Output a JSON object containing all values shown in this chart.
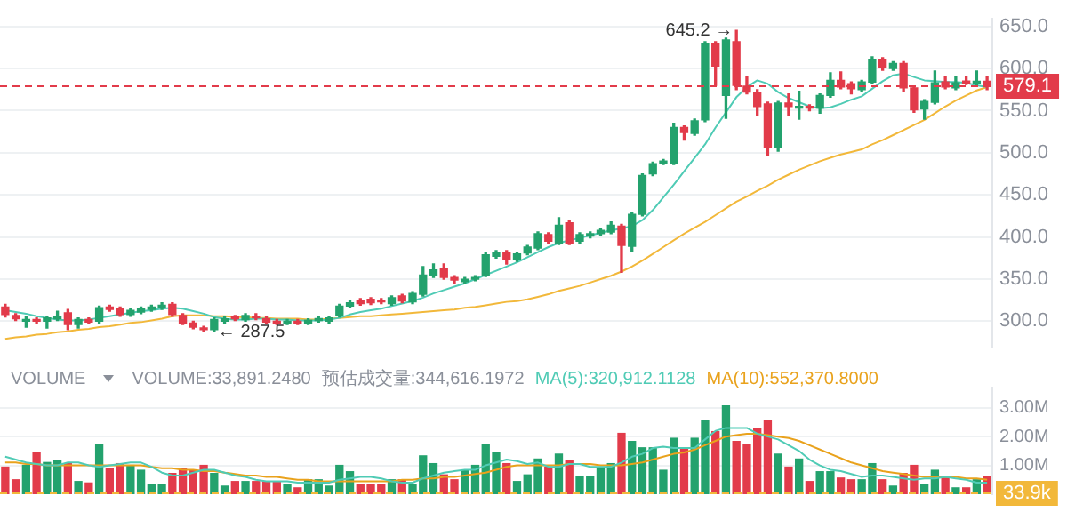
{
  "chart_data": [
    {
      "type": "candlestick",
      "categories": [
        null,
        null,
        null,
        null,
        null,
        null,
        null,
        null,
        null,
        null,
        null,
        null,
        null,
        null,
        null,
        null,
        null,
        null,
        null,
        null,
        null,
        null,
        null,
        null,
        null,
        null,
        null,
        null,
        null,
        null,
        null,
        null,
        null,
        null,
        null,
        null,
        null,
        null,
        null,
        null,
        null,
        null,
        null,
        null,
        null,
        null,
        null,
        null,
        null,
        null,
        null,
        null,
        null,
        null,
        null,
        null,
        null,
        null,
        null,
        null,
        null,
        null,
        null,
        null,
        null,
        null,
        null,
        null,
        null,
        null,
        null,
        null,
        null,
        null,
        null,
        null,
        null,
        null,
        null,
        null,
        null,
        null,
        null,
        null,
        null,
        null,
        null,
        null,
        null,
        null,
        null,
        null,
        null,
        null,
        null
      ],
      "ohlc": [
        [
          317,
          320,
          305,
          308
        ],
        [
          307,
          309,
          301,
          303
        ],
        [
          300,
          305,
          293,
          301
        ],
        [
          302,
          304,
          298,
          300
        ],
        [
          300,
          306,
          292,
          304
        ],
        [
          303,
          312,
          301,
          306
        ],
        [
          310,
          314,
          290,
          296
        ],
        [
          296,
          304,
          292,
          302
        ],
        [
          302,
          304,
          297,
          299
        ],
        [
          300,
          318,
          298,
          316
        ],
        [
          317,
          319,
          312,
          314
        ],
        [
          315,
          317,
          306,
          308
        ],
        [
          308,
          315,
          306,
          313
        ],
        [
          311,
          317,
          309,
          315
        ],
        [
          314,
          319,
          312,
          317
        ],
        [
          316,
          322,
          314,
          319
        ],
        [
          320,
          322,
          306,
          308
        ],
        [
          307,
          309,
          296,
          298
        ],
        [
          298,
          300,
          291,
          293
        ],
        [
          292,
          294,
          288,
          290
        ],
        [
          290,
          304,
          287.5,
          302
        ],
        [
          300,
          305,
          298,
          303
        ],
        [
          305,
          307,
          301,
          303
        ],
        [
          302,
          309,
          300,
          307
        ],
        [
          306,
          309,
          302,
          304
        ],
        [
          303,
          305,
          297,
          299
        ],
        [
          300,
          302,
          296,
          298
        ],
        [
          298,
          302,
          296,
          300
        ],
        [
          300,
          302,
          296,
          298
        ],
        [
          298,
          303,
          296,
          301
        ],
        [
          301,
          305,
          299,
          303
        ],
        [
          300,
          306,
          298,
          304
        ],
        [
          307,
          320,
          305,
          318
        ],
        [
          318,
          325,
          316,
          322
        ],
        [
          324,
          327,
          319,
          321
        ],
        [
          326,
          328,
          320,
          322
        ],
        [
          325,
          327,
          321,
          323
        ],
        [
          321,
          330,
          319,
          328
        ],
        [
          330,
          332,
          322,
          324
        ],
        [
          323,
          335,
          321,
          333
        ],
        [
          332,
          365,
          330,
          355
        ],
        [
          354,
          368,
          352,
          361
        ],
        [
          362,
          368,
          350,
          352
        ],
        [
          352,
          354,
          345,
          349
        ],
        [
          347,
          352,
          345,
          350
        ],
        [
          350,
          354,
          348,
          352
        ],
        [
          355,
          381,
          353,
          379
        ],
        [
          377,
          384,
          375,
          381
        ],
        [
          382,
          384,
          368,
          373
        ],
        [
          373,
          382,
          371,
          380
        ],
        [
          381,
          390,
          379,
          388
        ],
        [
          387,
          406,
          385,
          404
        ],
        [
          403,
          405,
          393,
          395
        ],
        [
          393,
          423,
          391,
          414
        ],
        [
          417,
          420,
          391,
          393
        ],
        [
          395,
          405,
          393,
          403
        ],
        [
          401,
          406,
          399,
          404
        ],
        [
          404,
          410,
          402,
          408
        ],
        [
          406,
          418,
          404,
          414
        ],
        [
          413,
          415,
          358,
          390
        ],
        [
          389,
          429,
          383,
          427
        ],
        [
          427,
          475,
          425,
          473
        ],
        [
          475,
          489,
          473,
          487
        ],
        [
          488,
          492,
          486,
          490
        ],
        [
          488,
          535,
          486,
          530
        ],
        [
          530,
          532,
          515,
          524
        ],
        [
          523,
          540,
          521,
          538
        ],
        [
          539,
          632,
          537,
          630
        ],
        [
          630,
          632,
          580,
          603
        ],
        [
          568,
          636,
          541,
          634
        ],
        [
          632,
          645.2,
          575,
          580
        ],
        [
          579,
          590,
          570,
          572
        ],
        [
          572,
          575,
          545,
          555
        ],
        [
          558,
          560,
          497,
          507
        ],
        [
          506,
          561,
          502,
          559
        ],
        [
          559,
          570,
          545,
          555
        ],
        [
          553,
          573,
          540,
          555
        ],
        [
          555,
          557,
          550,
          553
        ],
        [
          553,
          570,
          547,
          568
        ],
        [
          568,
          595,
          566,
          586
        ],
        [
          586,
          596,
          576,
          578
        ],
        [
          582,
          584,
          570,
          576
        ],
        [
          575,
          586,
          573,
          584
        ],
        [
          584,
          614,
          582,
          611
        ],
        [
          611,
          613,
          598,
          601
        ],
        [
          600,
          608,
          598,
          606
        ],
        [
          606,
          608,
          573,
          577
        ],
        [
          577,
          579,
          548,
          551
        ],
        [
          552,
          563,
          540,
          561
        ],
        [
          560,
          597,
          558,
          583
        ],
        [
          584,
          590,
          576,
          578
        ],
        [
          577,
          590,
          575,
          583
        ],
        [
          584,
          590,
          581,
          583
        ],
        [
          582,
          597,
          580,
          585
        ],
        [
          585,
          590,
          575,
          579.1
        ]
      ],
      "colors": [
        "#e23b4a",
        "#e23b4a",
        "#23a26d",
        "#e23b4a",
        "#23a26d",
        "#23a26d",
        "#e23b4a",
        "#23a26d",
        "#e23b4a",
        "#23a26d",
        "#e23b4a",
        "#e23b4a",
        "#23a26d",
        "#23a26d",
        "#23a26d",
        "#23a26d",
        "#e23b4a",
        "#e23b4a",
        "#e23b4a",
        "#e23b4a",
        "#23a26d",
        "#23a26d",
        "#e23b4a",
        "#23a26d",
        "#e23b4a",
        "#e23b4a",
        "#e23b4a",
        "#23a26d",
        "#e23b4a",
        "#23a26d",
        "#23a26d",
        "#23a26d",
        "#23a26d",
        "#23a26d",
        "#e23b4a",
        "#e23b4a",
        "#e23b4a",
        "#23a26d",
        "#e23b4a",
        "#23a26d",
        "#23a26d",
        "#23a26d",
        "#e23b4a",
        "#e23b4a",
        "#23a26d",
        "#23a26d",
        "#23a26d",
        "#23a26d",
        "#e23b4a",
        "#23a26d",
        "#23a26d",
        "#23a26d",
        "#e23b4a",
        "#23a26d",
        "#e23b4a",
        "#23a26d",
        "#23a26d",
        "#23a26d",
        "#23a26d",
        "#e23b4a",
        "#23a26d",
        "#23a26d",
        "#23a26d",
        "#23a26d",
        "#23a26d",
        "#e23b4a",
        "#23a26d",
        "#23a26d",
        "#e23b4a",
        "#23a26d",
        "#e23b4a",
        "#e23b4a",
        "#e23b4a",
        "#e23b4a",
        "#23a26d",
        "#e23b4a",
        "#23a26d",
        "#e23b4a",
        "#23a26d",
        "#23a26d",
        "#e23b4a",
        "#e23b4a",
        "#23a26d",
        "#23a26d",
        "#e23b4a",
        "#23a26d",
        "#e23b4a",
        "#e23b4a",
        "#23a26d",
        "#23a26d",
        "#e23b4a",
        "#23a26d",
        "#e23b4a",
        "#23a26d",
        "#e23b4a"
      ],
      "series": [
        {
          "type": "line",
          "color": "#4fcbb5",
          "values": [
            313,
            311,
            309,
            306,
            304,
            302,
            301,
            301,
            302,
            304,
            306,
            308,
            310,
            312,
            313,
            315,
            316,
            315,
            312,
            309,
            305,
            303,
            302,
            302,
            303,
            303,
            302,
            302,
            301,
            301,
            301,
            302,
            304,
            308,
            311,
            313,
            315,
            318,
            321,
            324,
            328,
            333,
            337,
            341,
            345,
            350,
            355,
            360,
            365,
            370,
            376,
            382,
            388,
            393,
            396,
            399,
            402,
            405,
            408,
            410,
            413,
            420,
            432,
            447,
            462,
            478,
            494,
            510,
            530,
            548,
            566,
            578,
            586,
            582,
            572,
            565,
            560,
            555,
            553,
            554,
            558,
            563,
            567,
            576,
            585,
            592,
            594,
            590,
            586,
            585,
            584,
            584,
            583,
            580,
            578
          ]
        },
        {
          "type": "line",
          "color": "#f2b83a",
          "values": [
            279,
            281,
            282,
            284,
            285,
            287,
            288,
            290,
            291,
            293,
            294,
            296,
            298,
            299,
            301,
            303,
            306,
            307,
            307,
            307,
            306,
            306,
            305,
            305,
            304,
            304,
            303,
            303,
            303,
            302,
            302,
            303,
            304,
            305,
            306,
            306,
            307,
            308,
            309,
            310,
            311,
            312,
            313,
            314,
            316,
            317,
            319,
            321,
            323,
            324,
            326,
            329,
            332,
            336,
            339,
            342,
            346,
            350,
            354,
            359,
            365,
            372,
            380,
            388,
            396,
            404,
            411,
            418,
            426,
            434,
            442,
            448,
            455,
            461,
            468,
            474,
            480,
            485,
            490,
            494,
            498,
            501,
            504,
            510,
            515,
            521,
            527,
            533,
            539,
            547,
            555,
            562,
            568,
            574,
            578
          ]
        }
      ],
      "ylim": [
        269,
        659
      ],
      "yticks": [
        {
          "value": 300,
          "label": "300.0"
        },
        {
          "value": 350,
          "label": "350.0"
        },
        {
          "value": 400,
          "label": "400.0"
        },
        {
          "value": 450,
          "label": "450.0"
        },
        {
          "value": 500,
          "label": "500.0"
        },
        {
          "value": 550,
          "label": "550.0"
        },
        {
          "value": 600,
          "label": "600.0"
        },
        {
          "value": 650,
          "label": "650.0"
        }
      ],
      "grid": "y",
      "tick_labels": "y",
      "legend": false,
      "marker": "none",
      "ref_lines": [
        {
          "axis": "y",
          "value": 579.1,
          "label": "579.1",
          "color": "#e23b4a",
          "line_style": "dashed"
        }
      ],
      "annotations": [
        "645.2 →",
        "← 287.5"
      ]
    },
    {
      "type": "bar",
      "categories": [
        null,
        null,
        null,
        null,
        null,
        null,
        null,
        null,
        null,
        null,
        null,
        null,
        null,
        null,
        null,
        null,
        null,
        null,
        null,
        null,
        null,
        null,
        null,
        null,
        null,
        null,
        null,
        null,
        null,
        null,
        null,
        null,
        null,
        null,
        null,
        null,
        null,
        null,
        null,
        null,
        null,
        null,
        null,
        null,
        null,
        null,
        null,
        null,
        null,
        null,
        null,
        null,
        null,
        null,
        null,
        null,
        null,
        null,
        null,
        null,
        null,
        null,
        null,
        null,
        null,
        null,
        null,
        null,
        null,
        null,
        null,
        null,
        null,
        null,
        null,
        null,
        null,
        null,
        null,
        null,
        null,
        null,
        null,
        null,
        null,
        null,
        null,
        null,
        null,
        null,
        null,
        null,
        null,
        null,
        null
      ],
      "series": [
        {
          "type": "bar",
          "colors": [
            "#e23b4a",
            "#e23b4a",
            "#23a26d",
            "#e23b4a",
            "#23a26d",
            "#23a26d",
            "#e23b4a",
            "#23a26d",
            "#e23b4a",
            "#23a26d",
            "#e23b4a",
            "#e23b4a",
            "#23a26d",
            "#23a26d",
            "#23a26d",
            "#23a26d",
            "#e23b4a",
            "#e23b4a",
            "#e23b4a",
            "#e23b4a",
            "#23a26d",
            "#23a26d",
            "#e23b4a",
            "#23a26d",
            "#e23b4a",
            "#e23b4a",
            "#e23b4a",
            "#23a26d",
            "#e23b4a",
            "#23a26d",
            "#23a26d",
            "#23a26d",
            "#23a26d",
            "#23a26d",
            "#e23b4a",
            "#e23b4a",
            "#e23b4a",
            "#23a26d",
            "#e23b4a",
            "#23a26d",
            "#23a26d",
            "#23a26d",
            "#e23b4a",
            "#e23b4a",
            "#23a26d",
            "#23a26d",
            "#23a26d",
            "#23a26d",
            "#e23b4a",
            "#23a26d",
            "#23a26d",
            "#23a26d",
            "#e23b4a",
            "#23a26d",
            "#e23b4a",
            "#23a26d",
            "#23a26d",
            "#23a26d",
            "#23a26d",
            "#e23b4a",
            "#23a26d",
            "#23a26d",
            "#23a26d",
            "#23a26d",
            "#23a26d",
            "#e23b4a",
            "#23a26d",
            "#23a26d",
            "#e23b4a",
            "#23a26d",
            "#e23b4a",
            "#e23b4a",
            "#e23b4a",
            "#e23b4a",
            "#23a26d",
            "#e23b4a",
            "#23a26d",
            "#e23b4a",
            "#23a26d",
            "#23a26d",
            "#e23b4a",
            "#e23b4a",
            "#23a26d",
            "#23a26d",
            "#e23b4a",
            "#23a26d",
            "#e23b4a",
            "#e23b4a",
            "#23a26d",
            "#23a26d",
            "#e23b4a",
            "#23a26d",
            "#e23b4a",
            "#23a26d",
            "#e23b4a"
          ],
          "values": [
            0.94,
            0.5,
            1.0,
            1.44,
            1.1,
            1.17,
            1.06,
            0.44,
            0.39,
            1.72,
            0.89,
            1.06,
            1.0,
            0.83,
            0.33,
            0.33,
            0.72,
            0.89,
            0.83,
            1.0,
            0.72,
            0.28,
            0.44,
            0.44,
            0.44,
            0.44,
            0.44,
            0.33,
            0.22,
            0.5,
            0.5,
            0.28,
            1.0,
            0.78,
            0.33,
            0.33,
            0.33,
            0.5,
            0.5,
            0.33,
            1.33,
            1.06,
            0.67,
            0.5,
            0.83,
            1.0,
            1.72,
            1.44,
            1.06,
            0.44,
            0.67,
            1.22,
            0.94,
            1.39,
            1.17,
            0.61,
            0.61,
            0.89,
            1.06,
            2.11,
            1.83,
            1.61,
            1.61,
            0.83,
            1.94,
            1.61,
            1.94,
            2.56,
            2.17,
            3.06,
            1.83,
            1.72,
            2.28,
            2.56,
            1.39,
            0.94,
            1.22,
            0.44,
            0.78,
            0.78,
            0.56,
            0.5,
            0.5,
            1.06,
            0.5,
            0.28,
            0.72,
            1.0,
            0.33,
            0.83,
            0.56,
            0.22,
            0.22,
            0.5,
            0.61
          ]
        },
        {
          "type": "line",
          "name": "MA(5):320,912.1128",
          "color": "#4fcbb5",
          "values": [
            1.3,
            1.2,
            1.1,
            1.05,
            1.0,
            1.0,
            1.1,
            1.1,
            1.0,
            0.95,
            1.0,
            1.05,
            1.1,
            1.1,
            0.95,
            0.75,
            0.65,
            0.65,
            0.75,
            0.85,
            0.85,
            0.75,
            0.65,
            0.6,
            0.5,
            0.45,
            0.45,
            0.45,
            0.4,
            0.4,
            0.4,
            0.4,
            0.5,
            0.55,
            0.6,
            0.6,
            0.55,
            0.45,
            0.4,
            0.4,
            0.55,
            0.65,
            0.75,
            0.8,
            0.85,
            0.85,
            1.0,
            1.1,
            1.2,
            1.15,
            1.05,
            1.1,
            0.95,
            0.95,
            1.05,
            1.05,
            0.95,
            0.95,
            0.95,
            1.1,
            1.3,
            1.4,
            1.6,
            1.65,
            1.6,
            1.6,
            1.6,
            1.9,
            2.2,
            2.3,
            2.3,
            2.3,
            2.1,
            2.0,
            1.9,
            1.7,
            1.5,
            1.2,
            1.0,
            0.85,
            0.8,
            0.7,
            0.6,
            0.65,
            0.65,
            0.6,
            0.55,
            0.5,
            0.55,
            0.55,
            0.6,
            0.55,
            0.5,
            0.4,
            0.4
          ]
        },
        {
          "type": "line",
          "name": "MA(10):552,370.8000",
          "color": "#e9a21c",
          "values": [
            1.1,
            1.1,
            1.05,
            1.05,
            1.0,
            1.0,
            1.0,
            1.0,
            1.0,
            1.0,
            1.0,
            1.0,
            1.0,
            1.0,
            0.95,
            0.9,
            0.9,
            0.85,
            0.85,
            0.8,
            0.8,
            0.75,
            0.7,
            0.65,
            0.65,
            0.6,
            0.6,
            0.55,
            0.5,
            0.5,
            0.45,
            0.45,
            0.45,
            0.45,
            0.45,
            0.45,
            0.45,
            0.45,
            0.5,
            0.5,
            0.55,
            0.55,
            0.6,
            0.6,
            0.65,
            0.7,
            0.75,
            0.85,
            0.95,
            1.0,
            1.0,
            1.0,
            1.0,
            1.0,
            1.05,
            1.05,
            1.05,
            1.0,
            1.0,
            1.0,
            1.05,
            1.1,
            1.2,
            1.3,
            1.4,
            1.45,
            1.55,
            1.7,
            1.85,
            2.0,
            2.05,
            2.1,
            2.1,
            2.05,
            2.0,
            1.95,
            1.85,
            1.7,
            1.55,
            1.4,
            1.25,
            1.1,
            1.0,
            0.9,
            0.8,
            0.75,
            0.7,
            0.65,
            0.6,
            0.6,
            0.6,
            0.6,
            0.55,
            0.55,
            0.5
          ]
        }
      ],
      "ylim": [
        0,
        3.7
      ],
      "yticks": [
        {
          "value": 1,
          "label": "1.00M"
        },
        {
          "value": 2,
          "label": "2.00M"
        },
        {
          "value": 3,
          "label": "3.00M"
        }
      ],
      "grid": "y",
      "tick_labels": "y",
      "legend": "top",
      "marker": "none",
      "annotations": [
        "VOLUME",
        "VOLUME:33,891.2480",
        "预估成交量:344,616.1972"
      ],
      "ref_lines": [
        {
          "axis": "y",
          "value": 0.0339,
          "label": "33.9k",
          "color": "#f2b83a",
          "line_style": "dashed"
        }
      ]
    }
  ]
}
